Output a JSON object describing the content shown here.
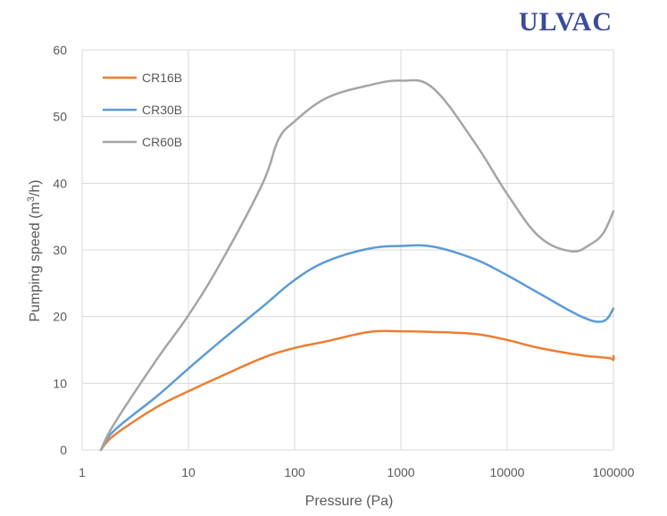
{
  "brand": {
    "name": "ULVAC",
    "color": "#3a4b9b"
  },
  "chart_data": {
    "type": "line",
    "title": "",
    "xlabel": "Pressure (Pa)",
    "ylabel_prefix": "Pumping speed (m",
    "ylabel_sup": "3",
    "ylabel_suffix": "/h)",
    "x_scale": "log",
    "xlim": [
      1,
      100000
    ],
    "ylim": [
      0,
      60
    ],
    "x_ticks": [
      "1",
      "10",
      "100",
      "1000",
      "10000",
      "100000"
    ],
    "y_ticks": [
      "0",
      "10",
      "20",
      "30",
      "40",
      "50",
      "60"
    ],
    "grid": true,
    "legend_position": "top-left",
    "series": [
      {
        "name": "CR16B",
        "color": "#ed7d31",
        "points": [
          [
            1.5,
            0
          ],
          [
            2,
            2.2
          ],
          [
            5,
            6.4
          ],
          [
            10,
            8.8
          ],
          [
            20,
            11
          ],
          [
            50,
            13.8
          ],
          [
            100,
            15.3
          ],
          [
            200,
            16.3
          ],
          [
            500,
            17.7
          ],
          [
            1000,
            17.8
          ],
          [
            2000,
            17.7
          ],
          [
            5000,
            17.4
          ],
          [
            10000,
            16.5
          ],
          [
            20000,
            15.3
          ],
          [
            50000,
            14.2
          ],
          [
            90000,
            13.8
          ],
          [
            100000,
            13.5
          ],
          [
            100000,
            14.1
          ]
        ]
      },
      {
        "name": "CR30B",
        "color": "#5b9bd5",
        "points": [
          [
            1.5,
            0
          ],
          [
            2,
            2.9
          ],
          [
            5,
            8
          ],
          [
            10,
            12.2
          ],
          [
            20,
            16.3
          ],
          [
            50,
            21.5
          ],
          [
            100,
            25.5
          ],
          [
            200,
            28.3
          ],
          [
            500,
            30.2
          ],
          [
            1000,
            30.6
          ],
          [
            2000,
            30.5
          ],
          [
            5000,
            28.6
          ],
          [
            10000,
            26.2
          ],
          [
            20000,
            23.5
          ],
          [
            50000,
            20
          ],
          [
            80000,
            19.3
          ],
          [
            100000,
            21.2
          ]
        ]
      },
      {
        "name": "CR60B",
        "color": "#a5a5a5",
        "points": [
          [
            1.5,
            0
          ],
          [
            2,
            3.9
          ],
          [
            5,
            13.5
          ],
          [
            10,
            20.2
          ],
          [
            20,
            28
          ],
          [
            50,
            40
          ],
          [
            70,
            46.5
          ],
          [
            100,
            49.3
          ],
          [
            200,
            52.8
          ],
          [
            500,
            54.7
          ],
          [
            1000,
            55.4
          ],
          [
            2000,
            54.3
          ],
          [
            5000,
            46
          ],
          [
            10000,
            38.4
          ],
          [
            20000,
            32
          ],
          [
            40000,
            29.8
          ],
          [
            60000,
            30.8
          ],
          [
            80000,
            32.5
          ],
          [
            100000,
            35.8
          ]
        ]
      }
    ]
  }
}
